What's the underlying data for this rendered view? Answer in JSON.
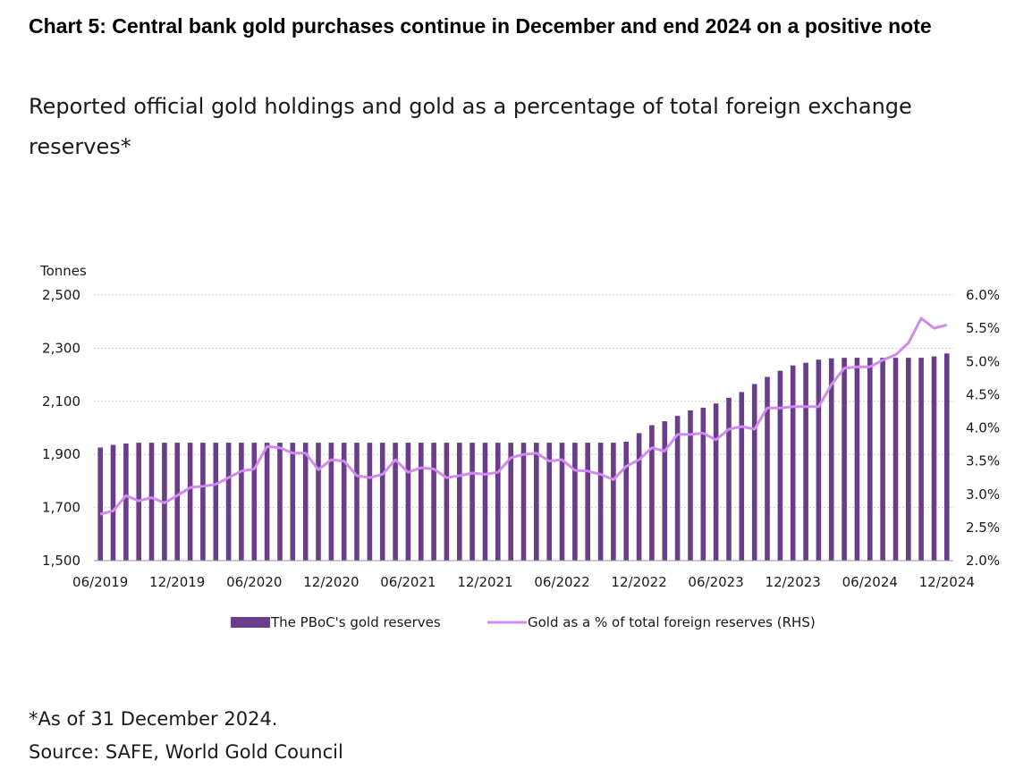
{
  "header": {
    "title": "Chart 5: Central bank gold purchases continue in December and end 2024 on a positive note",
    "subtitle": "Reported official gold holdings and gold as a percentage of total foreign exchange reserves*"
  },
  "footer": {
    "note": "*As of 31 December 2024.",
    "source": "Source: SAFE, World Gold Council"
  },
  "colors": {
    "bars": "#6a3d8a",
    "line": "#d08af0",
    "grid": "#cfcfcf",
    "axis": "#9a9a9a"
  },
  "chart_data": {
    "type": "bar",
    "title": "",
    "ylabel": "Tonnes",
    "y2label": "",
    "ylim": [
      1500,
      2500
    ],
    "y2lim": [
      2.0,
      6.0
    ],
    "yticks": [
      "2,500",
      "2,300",
      "2,100",
      "1,900",
      "1,700",
      "1,500"
    ],
    "y2ticks": [
      "6.0%",
      "5.5%",
      "5.0%",
      "4.5%",
      "4.0%",
      "3.5%",
      "3.0%",
      "2.5%",
      "2.0%"
    ],
    "xticklabels": [
      "06/2019",
      "12/2019",
      "06/2020",
      "12/2020",
      "06/2021",
      "12/2021",
      "06/2022",
      "12/2022",
      "06/2023",
      "12/2023",
      "06/2024",
      "12/2024"
    ],
    "grid": true,
    "legend_position": "bottom",
    "x": [
      "06/2019",
      "07/2019",
      "08/2019",
      "09/2019",
      "10/2019",
      "11/2019",
      "12/2019",
      "01/2020",
      "02/2020",
      "03/2020",
      "04/2020",
      "05/2020",
      "06/2020",
      "07/2020",
      "08/2020",
      "09/2020",
      "10/2020",
      "11/2020",
      "12/2020",
      "01/2021",
      "02/2021",
      "03/2021",
      "04/2021",
      "05/2021",
      "06/2021",
      "07/2021",
      "08/2021",
      "09/2021",
      "10/2021",
      "11/2021",
      "12/2021",
      "01/2022",
      "02/2022",
      "03/2022",
      "04/2022",
      "05/2022",
      "06/2022",
      "07/2022",
      "08/2022",
      "09/2022",
      "10/2022",
      "11/2022",
      "12/2022",
      "01/2023",
      "02/2023",
      "03/2023",
      "04/2023",
      "05/2023",
      "06/2023",
      "07/2023",
      "08/2023",
      "09/2023",
      "10/2023",
      "11/2023",
      "12/2023",
      "01/2024",
      "02/2024",
      "03/2024",
      "04/2024",
      "05/2024",
      "06/2024",
      "07/2024",
      "08/2024",
      "09/2024",
      "10/2024",
      "11/2024",
      "12/2024"
    ],
    "series": [
      {
        "name": "The PBoC's gold reserves",
        "type": "bar",
        "axis": "left",
        "values": [
          1926,
          1936,
          1941,
          1944,
          1944,
          1944,
          1944,
          1944,
          1944,
          1944,
          1944,
          1944,
          1944,
          1944,
          1944,
          1944,
          1944,
          1944,
          1944,
          1944,
          1944,
          1944,
          1944,
          1944,
          1944,
          1944,
          1944,
          1944,
          1944,
          1944,
          1944,
          1944,
          1944,
          1944,
          1944,
          1944,
          1944,
          1944,
          1944,
          1944,
          1944,
          1948,
          1980,
          2010,
          2025,
          2045,
          2066,
          2076,
          2092,
          2113,
          2135,
          2165,
          2192,
          2215,
          2235,
          2245,
          2257,
          2262,
          2264,
          2264,
          2264,
          2264,
          2264,
          2264,
          2264,
          2269,
          2280
        ]
      },
      {
        "name": "Gold as a % of total foreign reserves (RHS)",
        "type": "line",
        "axis": "right",
        "values": [
          2.7,
          2.75,
          2.98,
          2.9,
          2.95,
          2.87,
          2.98,
          3.1,
          3.12,
          3.15,
          3.25,
          3.35,
          3.38,
          3.72,
          3.7,
          3.62,
          3.62,
          3.37,
          3.52,
          3.5,
          3.28,
          3.25,
          3.3,
          3.52,
          3.33,
          3.4,
          3.38,
          3.25,
          3.28,
          3.32,
          3.3,
          3.33,
          3.55,
          3.6,
          3.62,
          3.5,
          3.52,
          3.36,
          3.35,
          3.3,
          3.22,
          3.42,
          3.52,
          3.7,
          3.65,
          3.9,
          3.9,
          3.92,
          3.82,
          3.98,
          4.02,
          3.98,
          4.3,
          4.3,
          4.32,
          4.32,
          4.32,
          4.65,
          4.9,
          4.92,
          4.92,
          5.02,
          5.1,
          5.28,
          5.65,
          5.5,
          5.55
        ]
      }
    ]
  }
}
